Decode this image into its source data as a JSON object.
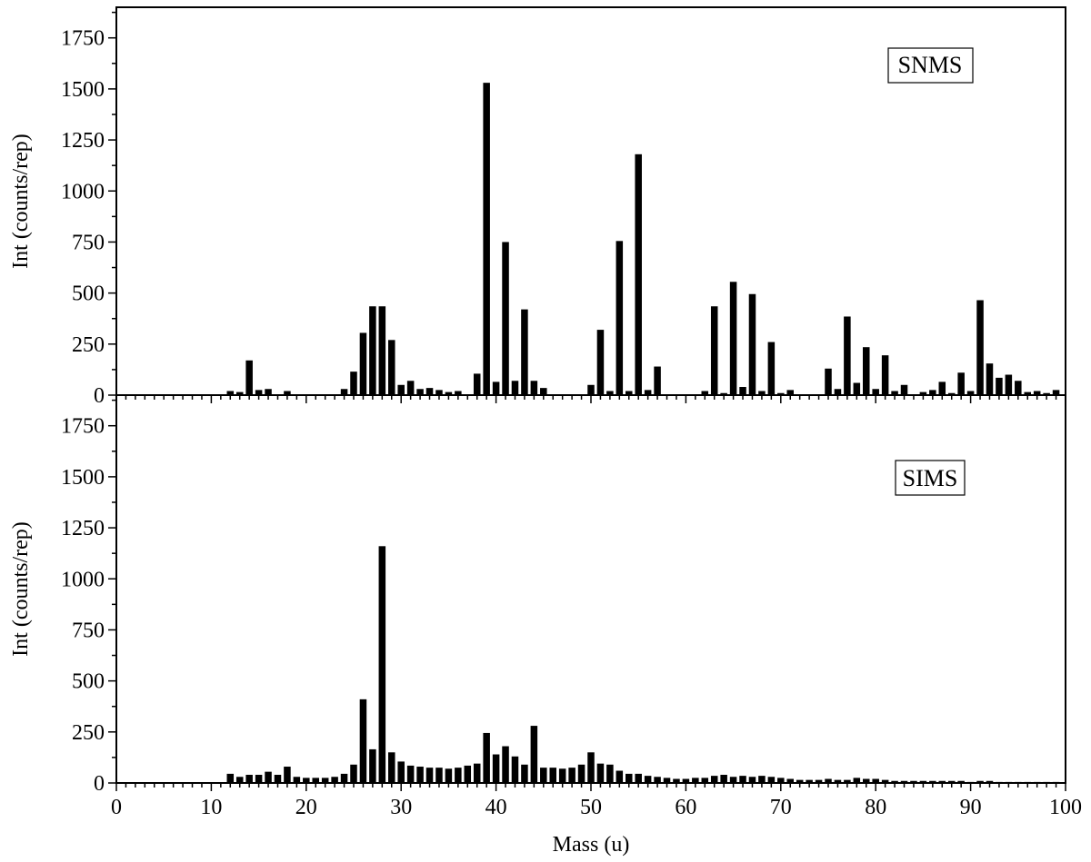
{
  "chart_data": {
    "type": "bar",
    "xlabel": "Mass (u)",
    "xlim": [
      0,
      100
    ],
    "x_ticks": [
      0,
      10,
      20,
      30,
      40,
      50,
      60,
      70,
      80,
      90,
      100
    ],
    "x": [
      12,
      13,
      14,
      15,
      16,
      17,
      18,
      19,
      20,
      21,
      22,
      23,
      24,
      25,
      26,
      27,
      28,
      29,
      30,
      31,
      32,
      33,
      34,
      35,
      36,
      37,
      38,
      39,
      40,
      41,
      42,
      43,
      44,
      45,
      46,
      47,
      48,
      49,
      50,
      51,
      52,
      53,
      54,
      55,
      56,
      57,
      58,
      59,
      60,
      61,
      62,
      63,
      64,
      65,
      66,
      67,
      68,
      69,
      70,
      71,
      72,
      73,
      74,
      75,
      76,
      77,
      78,
      79,
      80,
      81,
      82,
      83,
      84,
      85,
      86,
      87,
      88,
      89,
      90,
      91,
      92,
      93,
      94,
      95,
      96,
      97,
      98,
      99
    ],
    "bar_color": "#000000",
    "panels": [
      {
        "label": "SNMS",
        "ylabel": "Int (counts/rep)",
        "ylim": [
          0,
          1900
        ],
        "y_ticks": [
          0,
          250,
          500,
          750,
          1000,
          1250,
          1500,
          1750
        ],
        "values": [
          20,
          15,
          170,
          25,
          30,
          0,
          20,
          0,
          0,
          0,
          0,
          0,
          30,
          115,
          305,
          435,
          435,
          270,
          50,
          70,
          30,
          35,
          25,
          15,
          20,
          0,
          105,
          1530,
          65,
          750,
          70,
          420,
          70,
          35,
          0,
          0,
          0,
          0,
          50,
          320,
          20,
          755,
          20,
          1180,
          25,
          140,
          0,
          0,
          0,
          0,
          20,
          435,
          10,
          555,
          40,
          495,
          20,
          260,
          10,
          25,
          0,
          0,
          0,
          130,
          30,
          385,
          60,
          235,
          30,
          195,
          20,
          50,
          0,
          15,
          25,
          65,
          10,
          110,
          20,
          465,
          155,
          85,
          100,
          70,
          15,
          20,
          10,
          25
        ]
      },
      {
        "label": "SIMS",
        "ylabel": "Int (counts/rep)",
        "ylim": [
          0,
          1900
        ],
        "y_ticks": [
          0,
          250,
          500,
          750,
          1000,
          1250,
          1500,
          1750
        ],
        "values": [
          45,
          30,
          40,
          40,
          55,
          40,
          80,
          30,
          25,
          25,
          25,
          30,
          45,
          90,
          410,
          165,
          1160,
          150,
          105,
          85,
          80,
          75,
          75,
          70,
          75,
          85,
          95,
          245,
          140,
          180,
          130,
          90,
          280,
          75,
          75,
          70,
          75,
          90,
          150,
          95,
          90,
          60,
          45,
          45,
          35,
          30,
          25,
          20,
          20,
          25,
          25,
          35,
          40,
          30,
          35,
          30,
          35,
          30,
          25,
          20,
          15,
          15,
          15,
          20,
          15,
          15,
          25,
          20,
          20,
          15,
          10,
          10,
          10,
          10,
          10,
          10,
          10,
          10,
          5,
          10,
          10,
          5,
          5,
          5,
          5,
          5,
          5,
          5
        ]
      }
    ]
  }
}
